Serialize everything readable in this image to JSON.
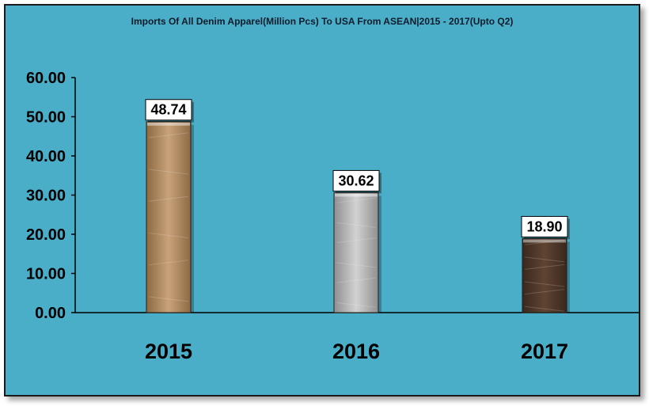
{
  "chart_data": {
    "type": "bar",
    "title": "Imports Of All Denim Apparel(Million Pcs) To USA From ASEAN|2015 - 2017(Upto Q2)",
    "categories": [
      "2015",
      "2016",
      "2017"
    ],
    "values": [
      48.74,
      30.62,
      18.9
    ],
    "value_labels": [
      "48.74",
      "30.62",
      "18.90"
    ],
    "yticks": [
      "0.00",
      "10.00",
      "20.00",
      "30.00",
      "40.00",
      "50.00",
      "60.00"
    ],
    "ylim": [
      0,
      60
    ],
    "xlabel": "",
    "ylabel": "",
    "grid": false,
    "legend": "none",
    "background_color": "#4aaec8",
    "bar_colors": [
      "#b08a5e",
      "#b9b9b9",
      "#4e3729"
    ]
  }
}
